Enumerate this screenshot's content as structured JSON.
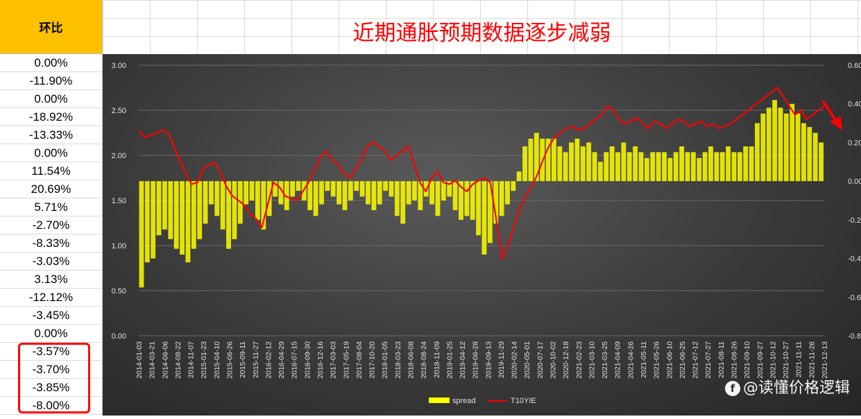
{
  "left_column": {
    "header": "环比",
    "values": [
      "0.00%",
      "-11.90%",
      "0.00%",
      "-18.92%",
      "-13.33%",
      "0.00%",
      "11.54%",
      "20.69%",
      "5.71%",
      "-2.70%",
      "-8.33%",
      "-3.03%",
      "3.13%",
      "-12.12%",
      "-3.45%",
      "0.00%",
      "-3.57%",
      "-3.70%",
      "-3.85%",
      "-8.00%"
    ]
  },
  "title": "近期通胀预期数据逐步减弱",
  "watermark": "@读懂价格逻辑",
  "colors": {
    "spread": "#ffff00",
    "t10yie": "#ff0000",
    "title": "#ff0000",
    "header_bg": "#ffc000",
    "highlight": "#ff0000"
  },
  "chart_data": {
    "type": "bar",
    "title": "",
    "x_tick_labels": [
      "2014-01-03",
      "2014-03-21",
      "2014-06-06",
      "2014-08-22",
      "2014-11-07",
      "2015-01-23",
      "2015-04-10",
      "2015-06-26",
      "2015-09-11",
      "2015-11-27",
      "2016-02-12",
      "2016-04-29",
      "2016-07-15",
      "2016-09-30",
      "2016-12-16",
      "2017-03-03",
      "2017-05-19",
      "2017-08-04",
      "2017-10-20",
      "2018-01-05",
      "2018-03-23",
      "2018-06-08",
      "2018-08-24",
      "2018-11-09",
      "2019-01-25",
      "2019-04-12",
      "2019-06-28",
      "2019-09-13",
      "2019-11-29",
      "2020-02-14",
      "2020-05-01",
      "2020-07-17",
      "2020-10-02",
      "2020-12-18",
      "2021-02-23",
      "2021-03-10",
      "2021-03-25",
      "2021-04-09",
      "2021-04-26",
      "2021-05-11",
      "2021-05-26",
      "2021-06-10",
      "2021-06-25",
      "2021-07-12",
      "2021-07-27",
      "2021-08-11",
      "2021-08-26",
      "2021-09-10",
      "2021-09-27",
      "2021-10-12",
      "2021-10-27",
      "2021-11-11",
      "2021-11-26",
      "2021-12-13"
    ],
    "y_left": {
      "ticks": [
        "3.00",
        "2.50",
        "2.00",
        "1.50",
        "1.00",
        "0.50",
        "0.00"
      ],
      "range": [
        0,
        3
      ]
    },
    "y_right": {
      "ticks": [
        "0.60",
        "0.40",
        "0.20",
        "0.00",
        "-0.20",
        "-0.40",
        "-0.60",
        "-0.80"
      ],
      "range": [
        -0.8,
        0.6
      ]
    },
    "legend": {
      "position": "bottom",
      "labels": [
        "spread",
        "T10YIE"
      ]
    },
    "series": [
      {
        "name": "spread",
        "axis": "right",
        "kind": "bar",
        "values": [
          -0.55,
          -0.42,
          -0.4,
          -0.28,
          -0.25,
          -0.3,
          -0.35,
          -0.38,
          -0.42,
          -0.35,
          -0.3,
          -0.22,
          -0.12,
          -0.18,
          -0.25,
          -0.35,
          -0.3,
          -0.22,
          -0.12,
          -0.1,
          -0.2,
          -0.25,
          -0.18,
          -0.08,
          -0.12,
          -0.15,
          -0.08,
          -0.05,
          -0.1,
          -0.15,
          -0.18,
          -0.12,
          -0.05,
          -0.08,
          -0.12,
          -0.15,
          -0.1,
          -0.05,
          -0.08,
          -0.12,
          -0.15,
          -0.12,
          -0.05,
          -0.08,
          -0.18,
          -0.22,
          -0.12,
          -0.1,
          -0.15,
          -0.08,
          -0.12,
          -0.18,
          -0.1,
          -0.08,
          -0.15,
          -0.2,
          -0.18,
          -0.2,
          -0.28,
          -0.38,
          -0.32,
          -0.22,
          -0.18,
          -0.12,
          -0.05,
          0.05,
          0.18,
          0.22,
          0.25,
          0.22,
          0.22,
          0.22,
          0.18,
          0.15,
          0.2,
          0.22,
          0.18,
          0.2,
          0.15,
          0.1,
          0.15,
          0.18,
          0.15,
          0.2,
          0.15,
          0.18,
          0.15,
          0.12,
          0.15,
          0.15,
          0.15,
          0.12,
          0.15,
          0.18,
          0.15,
          0.15,
          0.12,
          0.15,
          0.18,
          0.15,
          0.15,
          0.18,
          0.15,
          0.15,
          0.18,
          0.18,
          0.3,
          0.35,
          0.38,
          0.42,
          0.38,
          0.35,
          0.4,
          0.35,
          0.3,
          0.28,
          0.25,
          0.2
        ]
      },
      {
        "name": "T10YIE",
        "axis": "left",
        "kind": "line",
        "values": [
          2.28,
          2.2,
          2.22,
          2.25,
          2.28,
          2.25,
          2.1,
          1.95,
          1.8,
          1.68,
          1.7,
          1.85,
          1.9,
          1.92,
          1.8,
          1.65,
          1.55,
          1.5,
          1.45,
          1.35,
          1.3,
          1.2,
          1.45,
          1.7,
          1.65,
          1.55,
          1.52,
          1.5,
          1.6,
          1.7,
          1.85,
          1.98,
          2.05,
          1.95,
          1.9,
          1.8,
          1.75,
          1.85,
          1.95,
          2.1,
          2.15,
          2.1,
          2.05,
          1.95,
          2.0,
          2.05,
          2.1,
          1.9,
          1.7,
          1.6,
          1.75,
          1.82,
          1.7,
          1.68,
          1.72,
          1.65,
          1.6,
          1.68,
          1.72,
          1.75,
          1.7,
          1.3,
          0.85,
          1.0,
          1.2,
          1.4,
          1.55,
          1.65,
          1.78,
          1.95,
          2.1,
          2.2,
          2.25,
          2.3,
          2.32,
          2.28,
          2.3,
          2.35,
          2.4,
          2.45,
          2.55,
          2.5,
          2.4,
          2.35,
          2.38,
          2.42,
          2.35,
          2.3,
          2.38,
          2.35,
          2.3,
          2.35,
          2.4,
          2.38,
          2.32,
          2.35,
          2.38,
          2.32,
          2.35,
          2.3,
          2.32,
          2.35,
          2.4,
          2.45,
          2.5,
          2.55,
          2.6,
          2.65,
          2.7,
          2.75,
          2.65,
          2.55,
          2.45,
          2.5,
          2.4,
          2.45,
          2.5,
          2.55
        ]
      }
    ]
  }
}
